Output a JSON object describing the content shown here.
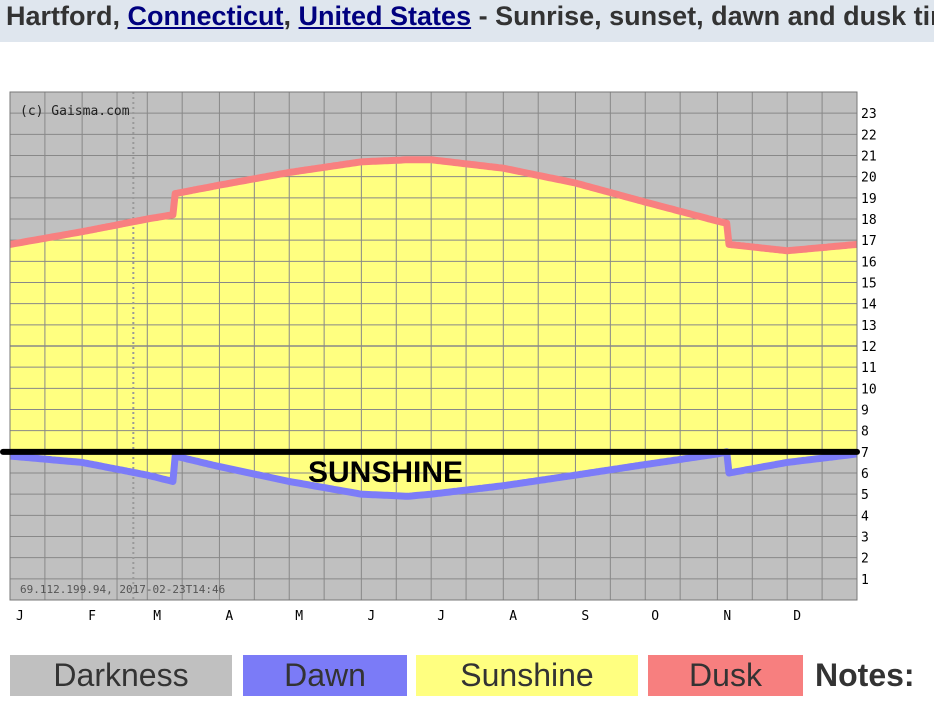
{
  "header": {
    "city": "Hartford",
    "sep1": ", ",
    "state_link": "Connecticut",
    "sep2": ", ",
    "country_link": "United States",
    "suffix": " - Sunrise, sunset, dawn and dusk times"
  },
  "chart_data": {
    "type": "area",
    "copyright": "(c) Gaisma.com",
    "footer_stamp": "69.112.199.94, 2017-02-23T14:46",
    "annotation": "SUNSHINE",
    "months": [
      "J",
      "F",
      "M",
      "A",
      "M",
      "J",
      "J",
      "A",
      "S",
      "O",
      "N",
      "D"
    ],
    "y_ticks": [
      "1",
      "2",
      "3",
      "4",
      "5",
      "6",
      "7",
      "8",
      "9",
      "10",
      "11",
      "12",
      "13",
      "14",
      "15",
      "16",
      "17",
      "18",
      "19",
      "20",
      "21",
      "22",
      "23"
    ],
    "ylim": [
      0,
      24
    ],
    "xlim": [
      1,
      365
    ],
    "reference_line_hour": 7,
    "dst_start_day": 71,
    "dst_end_day": 309,
    "series": [
      {
        "name": "Dawn",
        "x": [
          1,
          32,
          60,
          71,
          72,
          91,
          121,
          152,
          172,
          182,
          213,
          244,
          274,
          305,
          309,
          310,
          335,
          365
        ],
        "y": [
          6.8,
          6.5,
          5.9,
          5.6,
          6.8,
          6.3,
          5.6,
          5.0,
          4.9,
          5.0,
          5.4,
          5.9,
          6.4,
          6.9,
          7.0,
          6.0,
          6.5,
          6.9
        ]
      },
      {
        "name": "Dusk",
        "x": [
          1,
          32,
          60,
          71,
          72,
          91,
          121,
          152,
          172,
          182,
          213,
          244,
          274,
          305,
          309,
          310,
          335,
          365
        ],
        "y": [
          16.8,
          17.4,
          18.0,
          18.2,
          19.2,
          19.6,
          20.2,
          20.7,
          20.8,
          20.8,
          20.4,
          19.7,
          18.8,
          17.9,
          17.8,
          16.8,
          16.5,
          16.8
        ]
      }
    ],
    "colors": {
      "darkness": "#c0c0c0",
      "sunshine": "#ffff80",
      "dawn": "#7c7cf8",
      "dusk": "#f88080",
      "grid": "#888888"
    }
  },
  "legend": [
    {
      "label": "Darkness",
      "color": "#c0c0c0"
    },
    {
      "label": "Dawn",
      "color": "#7b7bf7"
    },
    {
      "label": "Sunshine",
      "color": "#ffff80"
    },
    {
      "label": "Dusk",
      "color": "#f77f7f"
    }
  ],
  "notes_label": "Notes:"
}
